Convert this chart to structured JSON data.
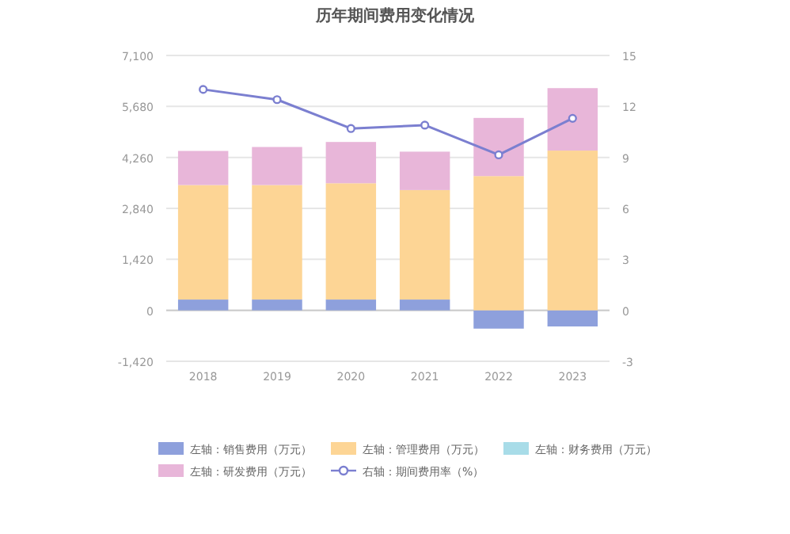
{
  "chart_data": {
    "type": "bar",
    "title": "历年期间费用变化情况",
    "stacked": true,
    "categories": [
      "2018",
      "2019",
      "2020",
      "2021",
      "2022",
      "2023"
    ],
    "series": [
      {
        "name": "左轴：销售费用（万元）",
        "color": "#8ea0dc",
        "values": [
          300,
          300,
          300,
          300,
          -510,
          -450
        ]
      },
      {
        "name": "左轴：管理费用（万元）",
        "color": "#fdd595",
        "values": [
          3190,
          3190,
          3240,
          3050,
          3740,
          4450
        ]
      },
      {
        "name": "左轴：财务费用（万元）",
        "color": "#a8dce8",
        "values": [
          null,
          null,
          null,
          null,
          null,
          null
        ]
      },
      {
        "name": "左轴：研发费用（万元）",
        "color": "#e8b6d9",
        "values": [
          950,
          1060,
          1150,
          1070,
          1620,
          1740
        ]
      },
      {
        "name": "右轴：期间费用率（%）",
        "color": "#7b7fd0",
        "type": "line",
        "axis": "y2",
        "values": [
          13.0,
          12.4,
          10.7,
          10.9,
          9.15,
          11.3
        ]
      }
    ],
    "ylim": [
      -1420,
      7100
    ],
    "yticks": [
      {
        "value": -1420,
        "label": "-1,420"
      },
      0,
      {
        "value": 1420,
        "label": "1,420"
      },
      {
        "value": 2840,
        "label": "2,840"
      },
      {
        "value": 4260,
        "label": "4,260"
      },
      {
        "value": 5680,
        "label": "5,680"
      },
      {
        "value": 7100,
        "label": "7,100"
      }
    ],
    "y2lim": [
      -3,
      15
    ],
    "y2ticks": [
      -3,
      0,
      3,
      6,
      9,
      12,
      15
    ],
    "grid": "y",
    "legend": "bottom",
    "marker": "circle"
  }
}
